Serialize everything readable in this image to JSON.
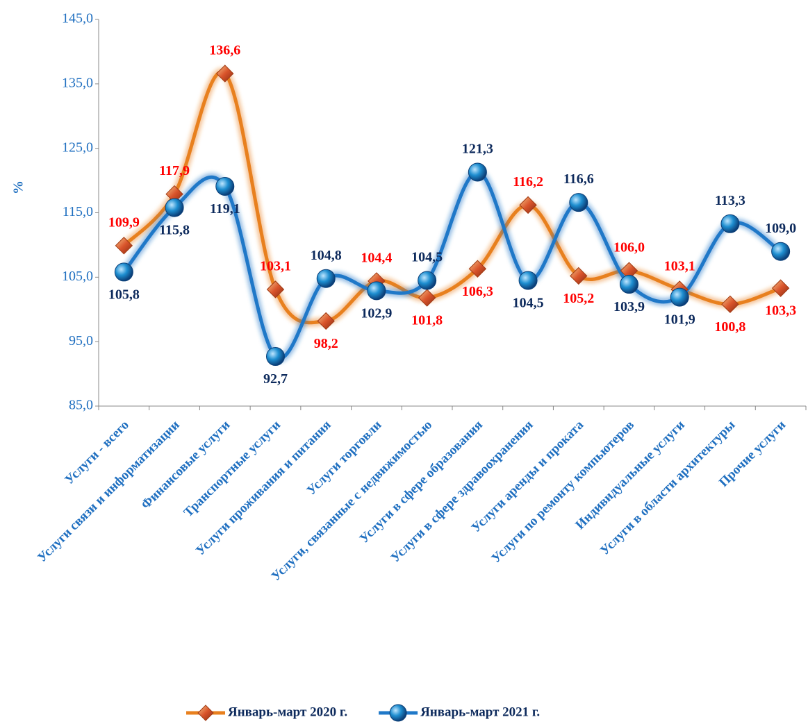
{
  "chart_data": {
    "type": "line",
    "y_label": "%",
    "categories": [
      "Услуги - всего",
      "Услуги связи и информатизации",
      "Финансовые услуги",
      "Транспортные услуги",
      "Услуги проживания и питания",
      "Услуги торговли",
      "Услуги, связанные с недвижимостью",
      "Услуги в сфере образования",
      "Услуги в сфере здравоохранения",
      "Услуги аренды и проката",
      "Услуги по ремонту компьютеров",
      "Индивидуальные услуги",
      "Услуги в области архитектуры",
      "Прочие услуги"
    ],
    "series": [
      {
        "name": "Январь-март 2020 г.",
        "color": "#e8801e",
        "marker_color": "#d9542b",
        "label_color": "#ff0000",
        "marker": "diamond",
        "values": [
          109.9,
          117.9,
          136.6,
          103.1,
          98.2,
          104.4,
          101.8,
          106.3,
          116.2,
          105.2,
          106.0,
          103.1,
          100.8,
          103.3
        ],
        "value_labels": [
          "109,9",
          "117,9",
          "136,6",
          "103,1",
          "98,2",
          "104,4",
          "101,8",
          "106,3",
          "116,2",
          "105,2",
          "106,0",
          "103,1",
          "100,8",
          "103,3"
        ]
      },
      {
        "name": "Январь-март 2021 г.",
        "color": "#1f78c8",
        "marker_color": "#1e8ed0",
        "label_color": "#0d2a5c",
        "marker": "circle",
        "values": [
          105.8,
          115.8,
          119.1,
          92.7,
          104.8,
          102.9,
          104.5,
          121.3,
          104.5,
          116.6,
          103.9,
          101.9,
          113.3,
          109.0
        ],
        "value_labels": [
          "105,8",
          "115,8",
          "119,1",
          "92,7",
          "104,8",
          "102,9",
          "104,5",
          "121,3",
          "104,5",
          "116,6",
          "103,9",
          "101,9",
          "113,3",
          "109,0"
        ]
      }
    ],
    "ylim": [
      85,
      145
    ],
    "yticks": [
      {
        "value": 85,
        "label": "85,0"
      },
      {
        "value": 95,
        "label": "95,0"
      },
      {
        "value": 105,
        "label": "105,0"
      },
      {
        "value": 115,
        "label": "115,0"
      },
      {
        "value": 125,
        "label": "125,0"
      },
      {
        "value": 135,
        "label": "135,0"
      },
      {
        "value": 145,
        "label": "145,0"
      }
    ],
    "legend": "bottom"
  }
}
